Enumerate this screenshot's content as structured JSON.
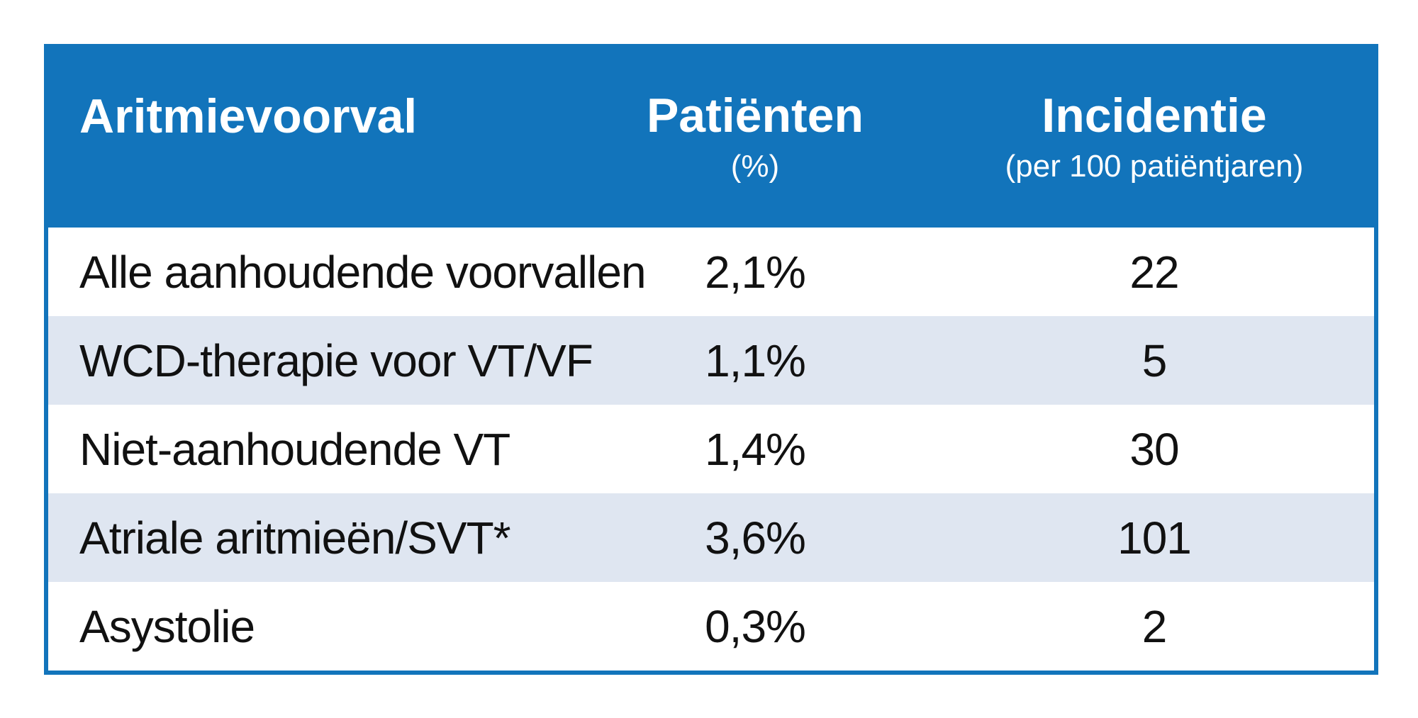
{
  "colors": {
    "accent_blue": "#1274bb",
    "alt_row_blue": "#dfe6f1",
    "header_text": "#ffffff",
    "body_text": "#111111",
    "page_background": "#ffffff"
  },
  "table": {
    "header": {
      "col1": {
        "title": "Aritmievoorval",
        "sub": ""
      },
      "col2": {
        "title": "Patiënten",
        "sub": "(%)"
      },
      "col3": {
        "title": "Incidentie",
        "sub": "(per 100 patiëntjaren)"
      }
    },
    "rows": [
      {
        "label": "Alle aanhoudende voorvallen",
        "patients_pct": "2,1%",
        "incidence": "22"
      },
      {
        "label": "WCD-therapie voor VT/VF",
        "patients_pct": "1,1%",
        "incidence": "5"
      },
      {
        "label": "Niet-aanhoudende VT",
        "patients_pct": "1,4%",
        "incidence": "30"
      },
      {
        "label": "Atriale aritmieën/SVT*",
        "patients_pct": "3,6%",
        "incidence": "101"
      },
      {
        "label": "Asystolie",
        "patients_pct": "0,3%",
        "incidence": "2"
      }
    ]
  },
  "chart_data": {
    "type": "table",
    "title": "",
    "columns": [
      "Aritmievoorval",
      "Patiënten (%)",
      "Incidentie (per 100 patiëntjaren)"
    ],
    "rows": [
      [
        "Alle aanhoudende voorvallen",
        "2,1%",
        22
      ],
      [
        "WCD-therapie voor VT/VF",
        "1,1%",
        5
      ],
      [
        "Niet-aanhoudende VT",
        "1,4%",
        30
      ],
      [
        "Atriale aritmieën/SVT*",
        "3,6%",
        101
      ],
      [
        "Asystolie",
        "0,3%",
        2
      ]
    ],
    "layout_hints": {
      "header_background": "#1274bb",
      "row_stripes": [
        "#ffffff",
        "#dfe6f1"
      ],
      "border": "6px solid #1274bb",
      "decimal_separator": "comma"
    }
  }
}
